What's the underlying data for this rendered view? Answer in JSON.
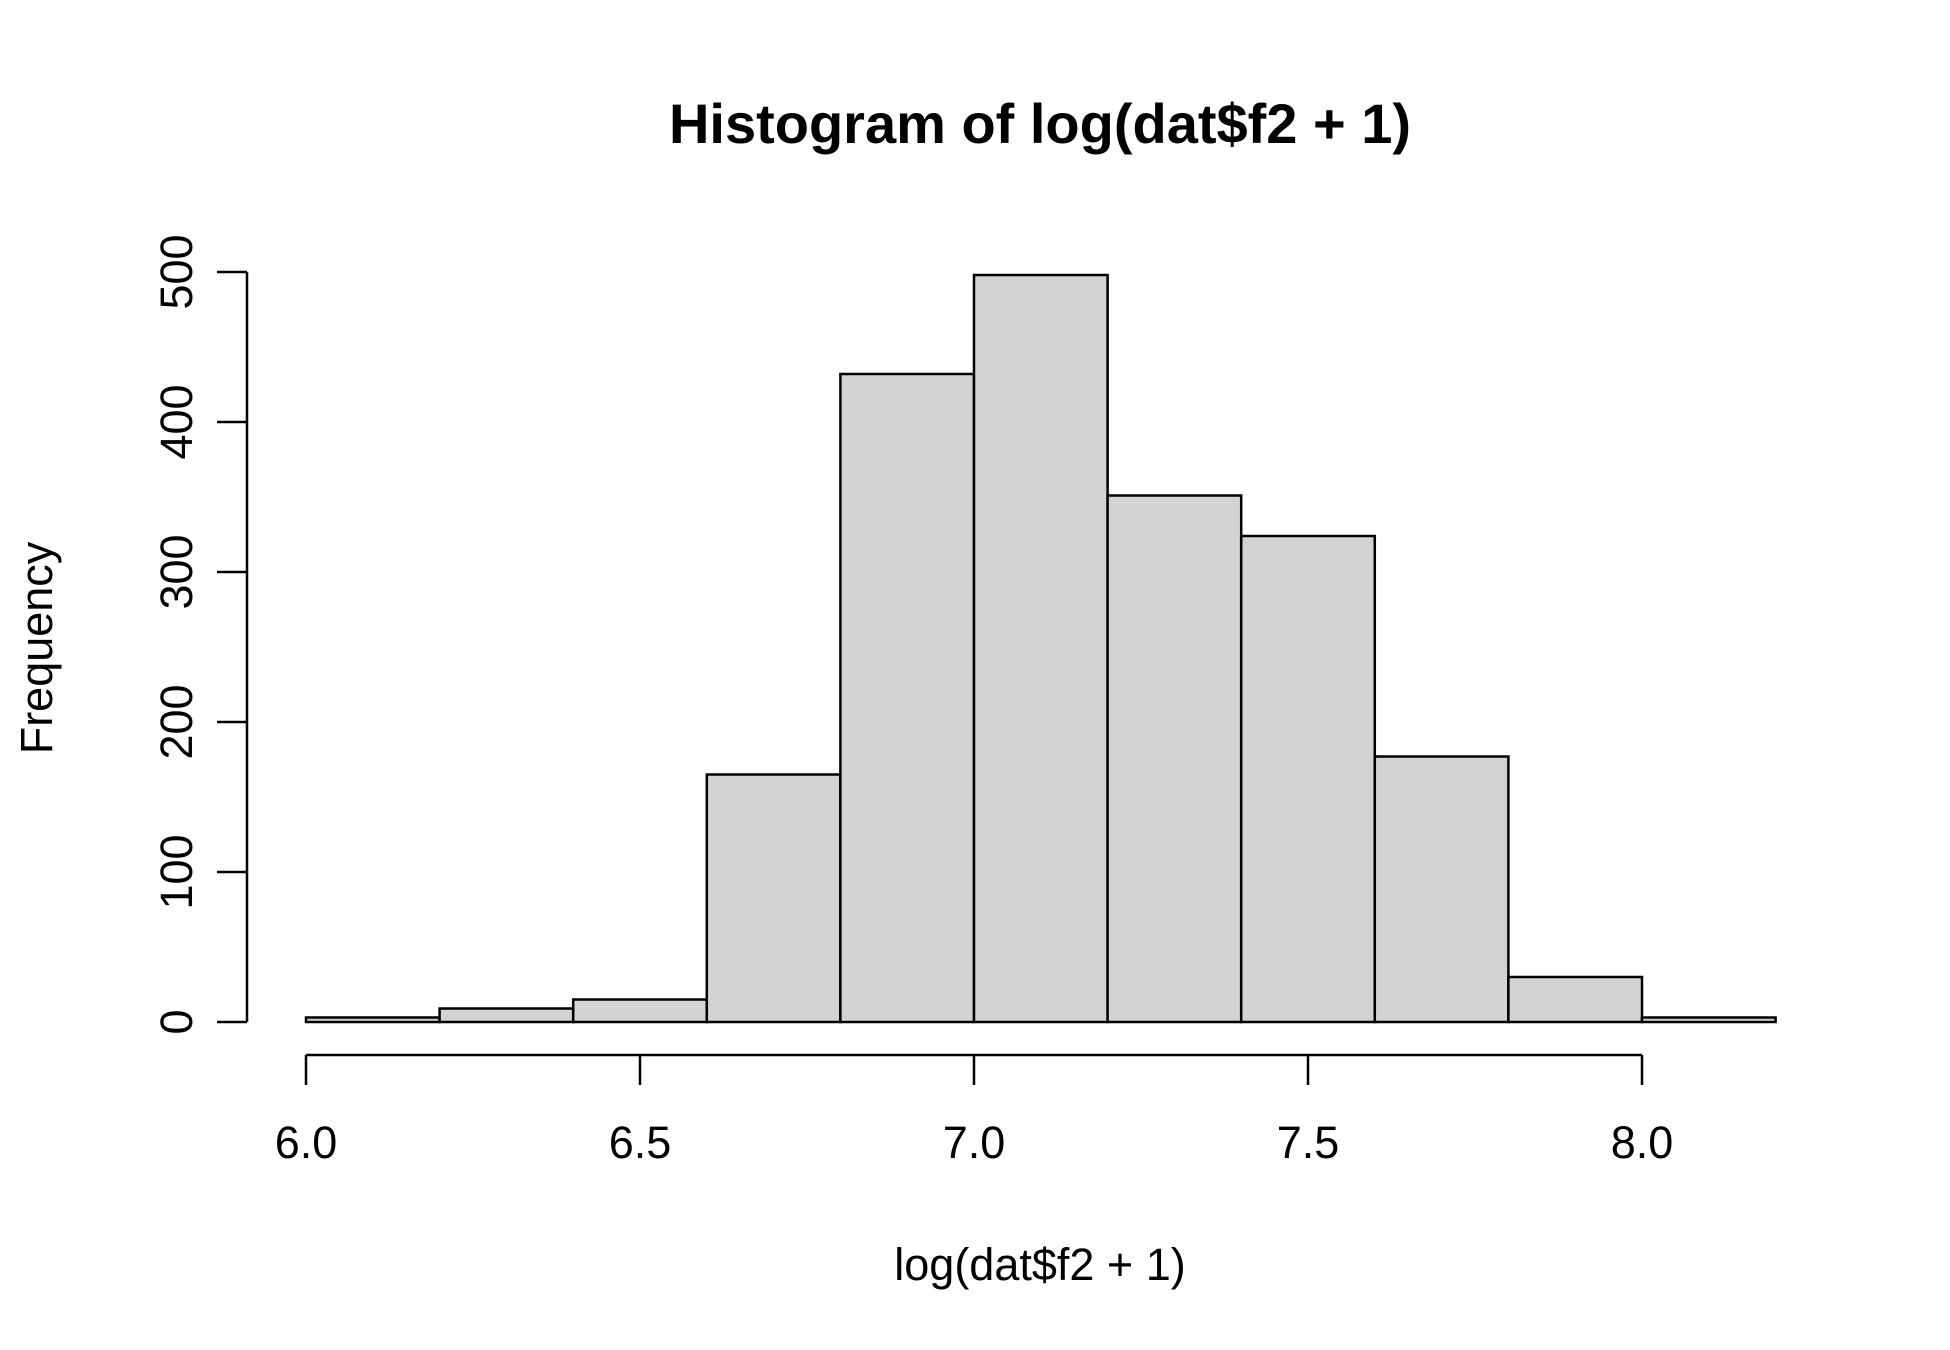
{
  "chart_data": {
    "type": "bar",
    "title": "Histogram of log(dat$f2 + 1)",
    "xlabel": "log(dat$f2 + 1)",
    "ylabel": "Frequency",
    "bar_fill": "#d3d3d3",
    "bar_stroke": "#000000",
    "xlim": [
      6.0,
      8.2
    ],
    "ylim": [
      0,
      500
    ],
    "x_ticks": [
      6.0,
      6.5,
      7.0,
      7.5,
      8.0
    ],
    "x_tick_labels": [
      "6.0",
      "6.5",
      "7.0",
      "7.5",
      "8.0"
    ],
    "y_ticks": [
      0,
      100,
      200,
      300,
      400,
      500
    ],
    "y_tick_labels": [
      "0",
      "100",
      "200",
      "300",
      "400",
      "500"
    ],
    "bins": [
      {
        "x0": 6.0,
        "x1": 6.2,
        "count": 3
      },
      {
        "x0": 6.2,
        "x1": 6.4,
        "count": 9
      },
      {
        "x0": 6.4,
        "x1": 6.6,
        "count": 15
      },
      {
        "x0": 6.6,
        "x1": 6.8,
        "count": 165
      },
      {
        "x0": 6.8,
        "x1": 7.0,
        "count": 432
      },
      {
        "x0": 7.0,
        "x1": 7.2,
        "count": 498
      },
      {
        "x0": 7.2,
        "x1": 7.4,
        "count": 351
      },
      {
        "x0": 7.4,
        "x1": 7.6,
        "count": 324
      },
      {
        "x0": 7.6,
        "x1": 7.8,
        "count": 177
      },
      {
        "x0": 7.8,
        "x1": 8.0,
        "count": 30
      },
      {
        "x0": 8.0,
        "x1": 8.2,
        "count": 3
      }
    ],
    "grid": false,
    "legend": "none"
  }
}
